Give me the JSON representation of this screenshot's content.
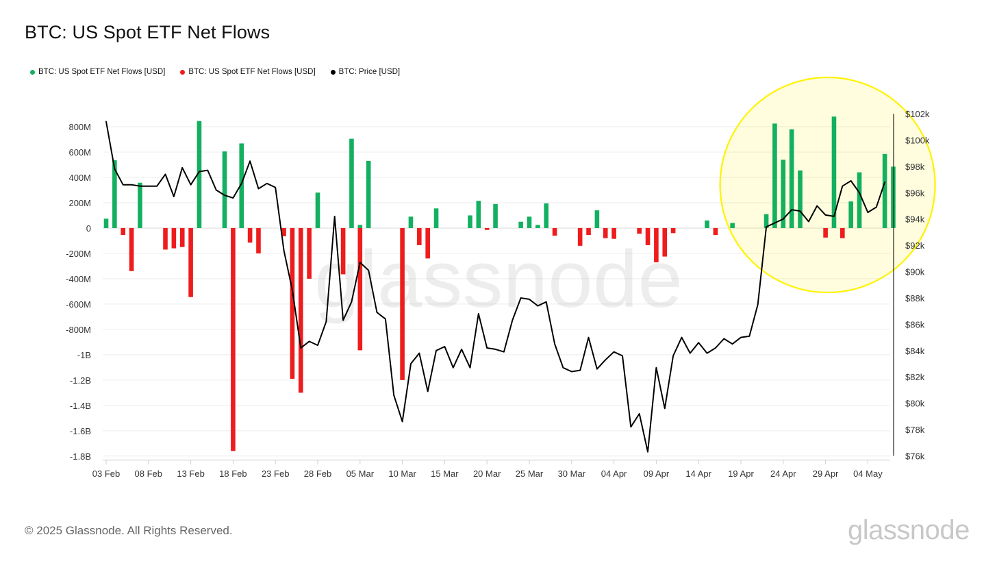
{
  "title": "BTC: US Spot ETF Net Flows",
  "legend": [
    {
      "label": "BTC: US Spot ETF Net Flows [USD]",
      "color": "#12b060"
    },
    {
      "label": "BTC: US Spot ETF Net Flows [USD]",
      "color": "#ee1c1c"
    },
    {
      "label": "BTC: Price [USD]",
      "color": "#000000"
    }
  ],
  "footer": {
    "copyright": "© 2025 Glassnode. All Rights Reserved.",
    "logo": "glassnode"
  },
  "watermark": "glassnode",
  "chart_data": {
    "type": "bar",
    "title": "BTC: US Spot ETF Net Flows",
    "x_start": "2025-02-03",
    "x_ticks": [
      "03 Feb",
      "08 Feb",
      "13 Feb",
      "18 Feb",
      "23 Feb",
      "28 Feb",
      "05 Mar",
      "10 Mar",
      "15 Mar",
      "20 Mar",
      "25 Mar",
      "30 Mar",
      "04 Apr",
      "09 Apr",
      "14 Apr",
      "19 Apr",
      "24 Apr",
      "29 Apr",
      "04 May"
    ],
    "y_left_ticks": [
      "800M",
      "600M",
      "400M",
      "200M",
      "0",
      "-200M",
      "-400M",
      "-600M",
      "-800M",
      "-1B",
      "-1.2B",
      "-1.4B",
      "-1.6B",
      "-1.8B"
    ],
    "y_left_range": [
      -1800,
      800
    ],
    "y_left_unit": "USD millions",
    "y_right_ticks": [
      "$102k",
      "$100k",
      "$98k",
      "$96k",
      "$94k",
      "$92k",
      "$90k",
      "$88k",
      "$86k",
      "$84k",
      "$82k",
      "$80k",
      "$78k",
      "$76k"
    ],
    "y_right_range": [
      76000,
      102000
    ],
    "highlight": {
      "shape": "circle",
      "color": "#fff200",
      "covers": "21 Apr – 06 May"
    },
    "series": [
      {
        "name": "BTC: US Spot ETF Net Flows [USD]",
        "color": "#12b060",
        "kind": "bar",
        "points": [
          [
            "2025-02-03",
            74
          ],
          [
            "2025-02-04",
            535
          ],
          [
            "2025-02-07",
            358
          ],
          [
            "2025-02-14",
            845
          ],
          [
            "2025-02-17",
            605
          ],
          [
            "2025-02-19",
            668
          ],
          [
            "2025-02-28",
            280
          ],
          [
            "2025-03-04",
            705
          ],
          [
            "2025-03-05",
            25
          ],
          [
            "2025-03-06",
            530
          ],
          [
            "2025-03-11",
            90
          ],
          [
            "2025-03-14",
            155
          ],
          [
            "2025-03-18",
            100
          ],
          [
            "2025-03-19",
            215
          ],
          [
            "2025-03-21",
            190
          ],
          [
            "2025-03-24",
            50
          ],
          [
            "2025-03-25",
            90
          ],
          [
            "2025-03-26",
            25
          ],
          [
            "2025-03-27",
            195
          ],
          [
            "2025-04-02",
            140
          ],
          [
            "2025-04-15",
            60
          ],
          [
            "2025-04-18",
            40
          ],
          [
            "2025-04-22",
            110
          ],
          [
            "2025-04-23",
            825
          ],
          [
            "2025-04-24",
            540
          ],
          [
            "2025-04-25",
            780
          ],
          [
            "2025-04-26",
            455
          ],
          [
            "2025-04-30",
            880
          ],
          [
            "2025-05-02",
            210
          ],
          [
            "2025-05-03",
            440
          ],
          [
            "2025-05-06",
            585
          ],
          [
            "2025-05-07",
            485
          ]
        ]
      },
      {
        "name": "BTC: US Spot ETF Net Flows [USD]",
        "color": "#ee1c1c",
        "kind": "bar",
        "points": [
          [
            "2025-02-05",
            -55
          ],
          [
            "2025-02-06",
            -340
          ],
          [
            "2025-02-10",
            -170
          ],
          [
            "2025-02-11",
            -160
          ],
          [
            "2025-02-12",
            -150
          ],
          [
            "2025-02-13",
            -545
          ],
          [
            "2025-02-18",
            -1760
          ],
          [
            "2025-02-20",
            -115
          ],
          [
            "2025-02-21",
            -200
          ],
          [
            "2025-02-24",
            -65
          ],
          [
            "2025-02-25",
            -1190
          ],
          [
            "2025-02-26",
            -1300
          ],
          [
            "2025-02-27",
            -400
          ],
          [
            "2025-03-03",
            -365
          ],
          [
            "2025-03-05",
            -965
          ],
          [
            "2025-03-10",
            -1200
          ],
          [
            "2025-03-12",
            -135
          ],
          [
            "2025-03-13",
            -240
          ],
          [
            "2025-03-20",
            -15
          ],
          [
            "2025-03-28",
            -60
          ],
          [
            "2025-03-31",
            -140
          ],
          [
            "2025-04-01",
            -55
          ],
          [
            "2025-04-03",
            -80
          ],
          [
            "2025-04-04",
            -85
          ],
          [
            "2025-04-07",
            -45
          ],
          [
            "2025-04-08",
            -135
          ],
          [
            "2025-04-09",
            -270
          ],
          [
            "2025-04-10",
            -225
          ],
          [
            "2025-04-11",
            -40
          ],
          [
            "2025-04-16",
            -55
          ],
          [
            "2025-04-29",
            -75
          ],
          [
            "2025-05-01",
            -80
          ]
        ]
      },
      {
        "name": "BTC: Price [USD]",
        "color": "#000000",
        "kind": "line",
        "points": [
          [
            "2025-02-03",
            101400
          ],
          [
            "2025-02-04",
            97800
          ],
          [
            "2025-02-05",
            96600
          ],
          [
            "2025-02-06",
            96600
          ],
          [
            "2025-02-07",
            96500
          ],
          [
            "2025-02-08",
            96500
          ],
          [
            "2025-02-09",
            96500
          ],
          [
            "2025-02-10",
            97400
          ],
          [
            "2025-02-11",
            95700
          ],
          [
            "2025-02-12",
            97900
          ],
          [
            "2025-02-13",
            96600
          ],
          [
            "2025-02-14",
            97600
          ],
          [
            "2025-02-15",
            97700
          ],
          [
            "2025-02-16",
            96200
          ],
          [
            "2025-02-17",
            95800
          ],
          [
            "2025-02-18",
            95600
          ],
          [
            "2025-02-19",
            96700
          ],
          [
            "2025-02-20",
            98400
          ],
          [
            "2025-02-21",
            96300
          ],
          [
            "2025-02-22",
            96700
          ],
          [
            "2025-02-23",
            96400
          ],
          [
            "2025-02-24",
            91600
          ],
          [
            "2025-02-25",
            88600
          ],
          [
            "2025-02-26",
            84200
          ],
          [
            "2025-02-27",
            84700
          ],
          [
            "2025-02-28",
            84400
          ],
          [
            "2025-03-01",
            86200
          ],
          [
            "2025-03-02",
            94200
          ],
          [
            "2025-03-03",
            86300
          ],
          [
            "2025-03-04",
            87700
          ],
          [
            "2025-03-05",
            90700
          ],
          [
            "2025-03-06",
            90100
          ],
          [
            "2025-03-07",
            86900
          ],
          [
            "2025-03-08",
            86400
          ],
          [
            "2025-03-09",
            80600
          ],
          [
            "2025-03-10",
            78600
          ],
          [
            "2025-03-11",
            83000
          ],
          [
            "2025-03-12",
            83800
          ],
          [
            "2025-03-13",
            80900
          ],
          [
            "2025-03-14",
            84000
          ],
          [
            "2025-03-15",
            84300
          ],
          [
            "2025-03-16",
            82700
          ],
          [
            "2025-03-17",
            84100
          ],
          [
            "2025-03-18",
            82700
          ],
          [
            "2025-03-19",
            86800
          ],
          [
            "2025-03-20",
            84200
          ],
          [
            "2025-03-21",
            84100
          ],
          [
            "2025-03-22",
            83900
          ],
          [
            "2025-03-23",
            86300
          ],
          [
            "2025-03-24",
            88000
          ],
          [
            "2025-03-25",
            87900
          ],
          [
            "2025-03-26",
            87400
          ],
          [
            "2025-03-27",
            87700
          ],
          [
            "2025-03-28",
            84500
          ],
          [
            "2025-03-29",
            82700
          ],
          [
            "2025-03-30",
            82400
          ],
          [
            "2025-03-31",
            82500
          ],
          [
            "2025-04-01",
            85000
          ],
          [
            "2025-04-02",
            82600
          ],
          [
            "2025-04-03",
            83300
          ],
          [
            "2025-04-04",
            83900
          ],
          [
            "2025-04-05",
            83600
          ],
          [
            "2025-04-06",
            78200
          ],
          [
            "2025-04-07",
            79200
          ],
          [
            "2025-04-08",
            76300
          ],
          [
            "2025-04-09",
            82700
          ],
          [
            "2025-04-10",
            79600
          ],
          [
            "2025-04-11",
            83600
          ],
          [
            "2025-04-12",
            85000
          ],
          [
            "2025-04-13",
            83800
          ],
          [
            "2025-04-14",
            84600
          ],
          [
            "2025-04-15",
            83800
          ],
          [
            "2025-04-16",
            84200
          ],
          [
            "2025-04-17",
            84900
          ],
          [
            "2025-04-18",
            84500
          ],
          [
            "2025-04-19",
            85000
          ],
          [
            "2025-04-20",
            85100
          ],
          [
            "2025-04-21",
            87500
          ],
          [
            "2025-04-22",
            93400
          ],
          [
            "2025-04-23",
            93700
          ],
          [
            "2025-04-24",
            94000
          ],
          [
            "2025-04-25",
            94700
          ],
          [
            "2025-04-26",
            94600
          ],
          [
            "2025-04-27",
            93800
          ],
          [
            "2025-04-28",
            95000
          ],
          [
            "2025-04-29",
            94300
          ],
          [
            "2025-04-30",
            94200
          ],
          [
            "2025-05-01",
            96500
          ],
          [
            "2025-05-02",
            96900
          ],
          [
            "2025-05-03",
            96000
          ],
          [
            "2025-05-04",
            94500
          ],
          [
            "2025-05-05",
            94900
          ],
          [
            "2025-05-06",
            96800
          ]
        ]
      }
    ]
  }
}
